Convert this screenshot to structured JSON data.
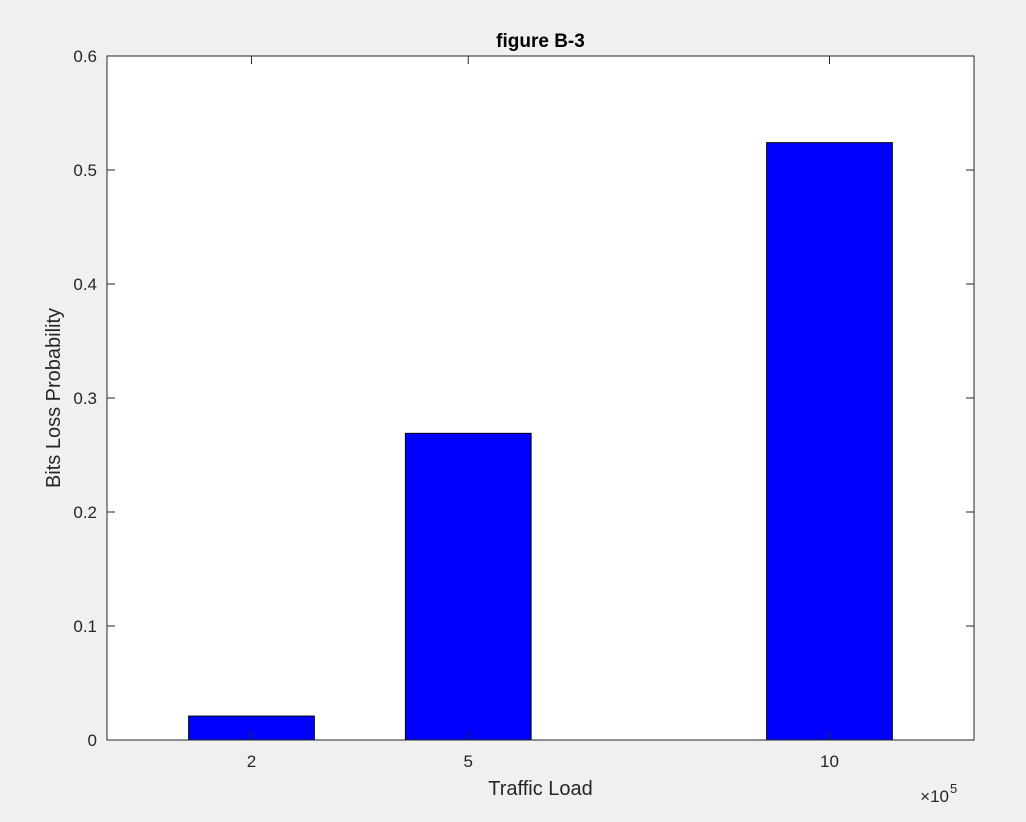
{
  "chart_data": {
    "type": "bar",
    "title": "figure B-3",
    "xlabel": "Traffic Load",
    "ylabel": "Bits Loss Probability",
    "x": [
      200000,
      500000,
      1000000
    ],
    "x_tick_labels": [
      "2",
      "5",
      "10"
    ],
    "x_exponent_multiplier": "×10",
    "x_exponent_power": "5",
    "values": [
      0.021,
      0.269,
      0.524
    ],
    "ylim": [
      0,
      0.6
    ],
    "y_ticks": [
      0,
      0.1,
      0.2,
      0.3,
      0.4,
      0.5,
      0.6
    ],
    "y_tick_labels": [
      "0",
      "0.1",
      "0.2",
      "0.3",
      "0.4",
      "0.5",
      "0.6"
    ],
    "grid": false,
    "colors": {
      "bar_fill": "#0000ff",
      "bar_edge": "#000000",
      "axes": "#262626",
      "background": "#f0f0f0",
      "plot_area": "#ffffff"
    }
  }
}
